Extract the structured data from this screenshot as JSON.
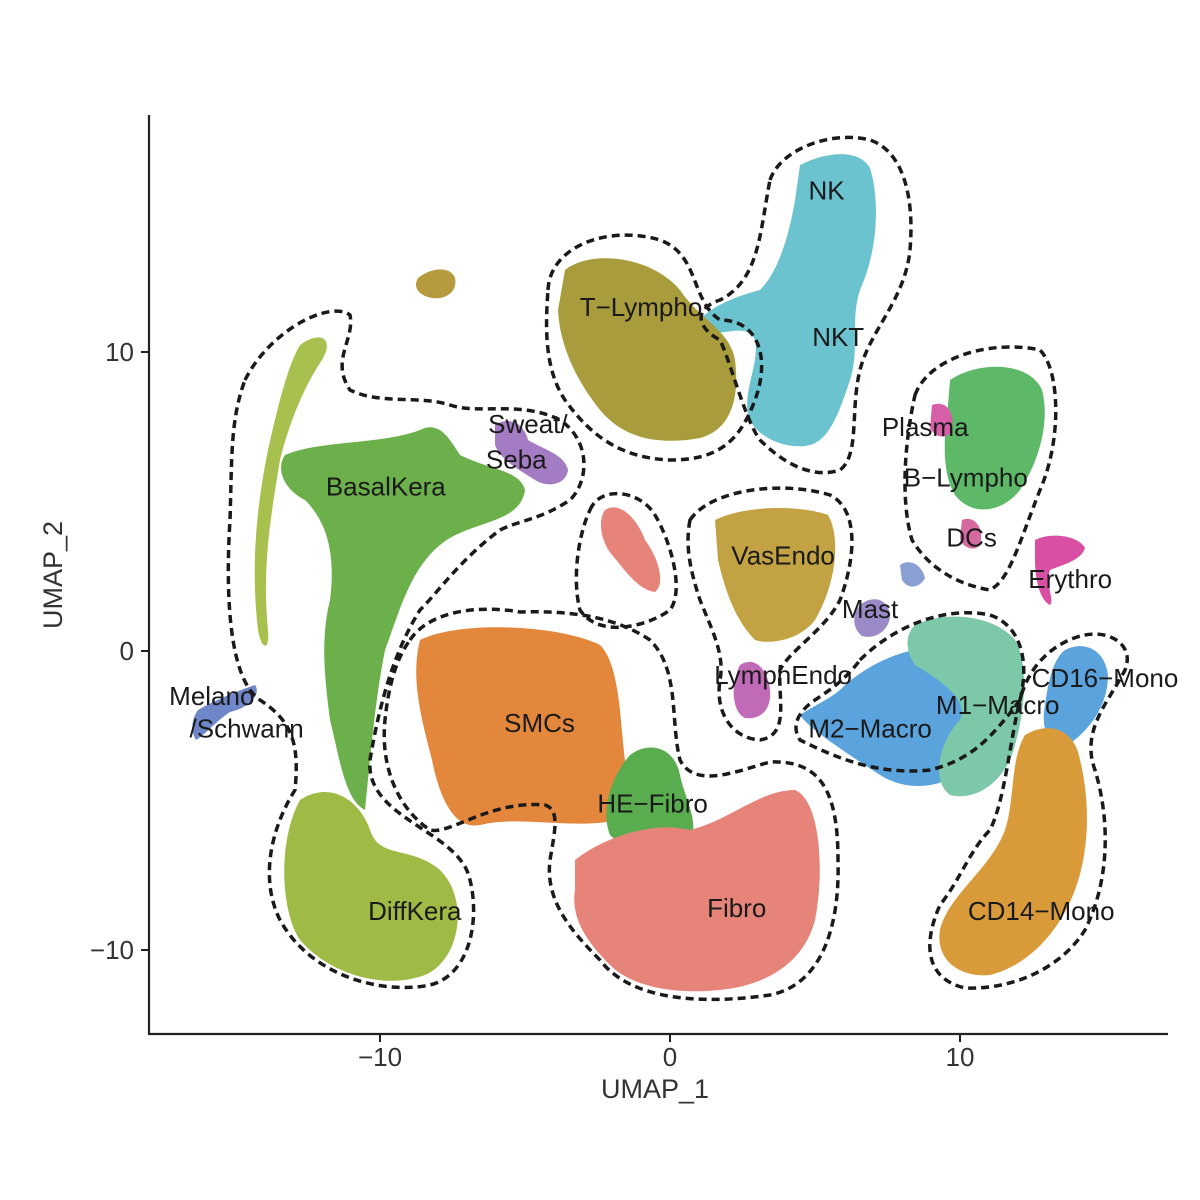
{
  "chart_data": {
    "type": "scatter",
    "title": "",
    "xlabel": "UMAP_1",
    "ylabel": "UMAP_2",
    "xlim": [
      -18,
      17
    ],
    "ylim": [
      -12.8,
      18
    ],
    "xticks": [
      -10,
      0,
      10
    ],
    "yticks": [
      -10,
      0,
      10
    ],
    "xtick_labels": [
      "−10",
      "0",
      "10"
    ],
    "ytick_labels": [
      "−10",
      "0",
      "10"
    ],
    "grid": false,
    "legend": "none",
    "clusters": [
      {
        "label": "NK",
        "label_x": 5.4,
        "label_y": 15.4,
        "color": "#6cc3d0"
      },
      {
        "label": "NKT",
        "label_x": 5.8,
        "label_y": 10.5,
        "color": "#6cc3d0"
      },
      {
        "label": "T−Lympho",
        "label_x": -1.0,
        "label_y": 11.5,
        "color": "#a89c3c"
      },
      {
        "label": "Plasma",
        "label_x": 8.8,
        "label_y": 7.5,
        "color": "#d65fa8"
      },
      {
        "label": "B−Lympho",
        "label_x": 10.2,
        "label_y": 5.8,
        "color": "#5db868"
      },
      {
        "label": "DCs",
        "label_x": 10.4,
        "label_y": 3.8,
        "color": "#d46aa0"
      },
      {
        "label": "Erythro",
        "label_x": 13.8,
        "label_y": 2.4,
        "color": "#d84fa4"
      },
      {
        "label": "Sweat/",
        "label_x": -4.9,
        "label_y": 7.6,
        "color": "#a47cc4"
      },
      {
        "label": "Seba",
        "label_x": -5.3,
        "label_y": 6.4,
        "color": "#a47cc4"
      },
      {
        "label": "BasalKera",
        "label_x": -9.8,
        "label_y": 5.5,
        "color": "#6cb04b"
      },
      {
        "label": "VasEndo",
        "label_x": 3.9,
        "label_y": 3.2,
        "color": "#c3a243"
      },
      {
        "label": "Mast",
        "label_x": 6.9,
        "label_y": 1.4,
        "color": "#9c8ac8"
      },
      {
        "label": "LymphEndo",
        "label_x": 3.9,
        "label_y": -0.8,
        "color": "#c06ab8"
      },
      {
        "label": "CD16−Mono",
        "label_x": 15.0,
        "label_y": -0.9,
        "color": "#5ba3dc"
      },
      {
        "label": "M1−Macro",
        "label_x": 11.3,
        "label_y": -1.8,
        "color": "#7cc8a8"
      },
      {
        "label": "M2−Macro",
        "label_x": 6.9,
        "label_y": -2.6,
        "color": "#5ba3dc"
      },
      {
        "label": "Melano",
        "label_x": -15.8,
        "label_y": -1.5,
        "color": "#6f86c8"
      },
      {
        "label": "/Schwann",
        "label_x": -14.6,
        "label_y": -2.6,
        "color": "#6f86c8"
      },
      {
        "label": "SMCs",
        "label_x": -4.5,
        "label_y": -2.4,
        "color": "#e2873c"
      },
      {
        "label": "HE−Fibro",
        "label_x": -0.6,
        "label_y": -5.1,
        "color": "#5aad4e"
      },
      {
        "label": "DiffKera",
        "label_x": -8.8,
        "label_y": -8.7,
        "color": "#9fba45"
      },
      {
        "label": "Fibro",
        "label_x": 2.3,
        "label_y": -8.6,
        "color": "#e6847a"
      },
      {
        "label": "CD14−Mono",
        "label_x": 12.8,
        "label_y": -8.7,
        "color": "#d99b3a"
      }
    ]
  }
}
